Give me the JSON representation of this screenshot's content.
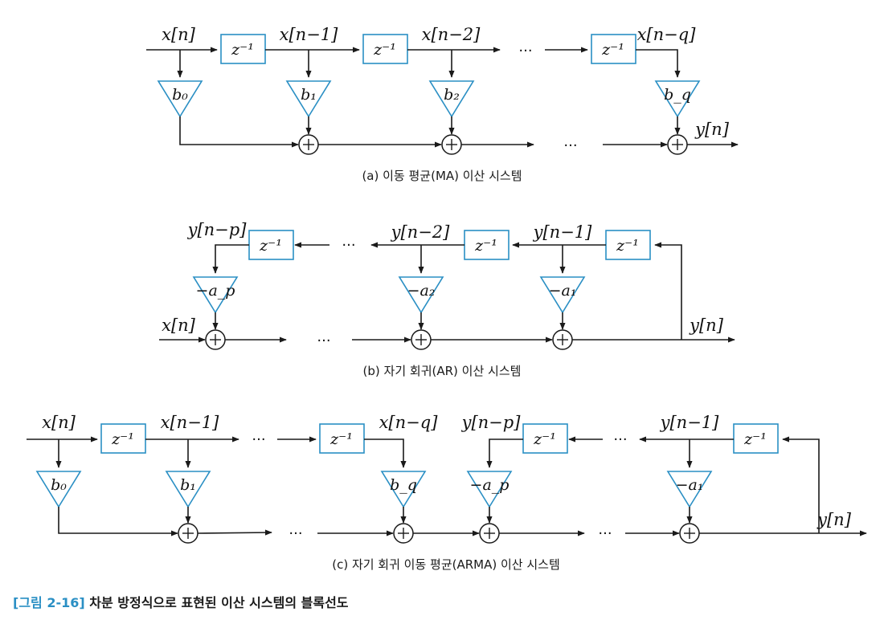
{
  "diagrams": {
    "ma": {
      "caption": "(a) 이동 평균(MA) 이산 시스템",
      "signals": {
        "x_n": "x[n]",
        "x_n1": "x[n−1]",
        "x_n2": "x[n−2]",
        "x_nq": "x[n−q]",
        "y_n": "y[n]"
      },
      "delay": "z⁻¹",
      "gains": [
        "b₀",
        "b₁",
        "b₂",
        "b_q"
      ],
      "ellipsis": "···"
    },
    "ar": {
      "caption": "(b) 자기 회귀(AR) 이산 시스템",
      "signals": {
        "y_np": "y[n−p]",
        "y_n2": "y[n−2]",
        "y_n1": "y[n−1]",
        "x_n": "x[n]",
        "y_n": "y[n]"
      },
      "delay": "z⁻¹",
      "gains": [
        "−a_p",
        "−a₂",
        "−a₁"
      ],
      "ellipsis": "···"
    },
    "arma": {
      "caption": "(c) 자기 회귀 이동 평균(ARMA) 이산 시스템",
      "signals": {
        "x_n": "x[n]",
        "x_n1": "x[n−1]",
        "x_nq": "x[n−q]",
        "y_np": "y[n−p]",
        "y_n1": "y[n−1]",
        "y_n": "y[n]"
      },
      "delay": "z⁻¹",
      "gains": [
        "b₀",
        "b₁",
        "b_q",
        "−a_p",
        "−a₁"
      ],
      "ellipsis": "···"
    }
  },
  "figure_caption": {
    "number": "[그림 2-16]",
    "title": "차분 방정식으로 표현된 이산 시스템의 블록선도"
  },
  "colors": {
    "accent": "#2a8fc4",
    "line": "#1a1a1a"
  }
}
